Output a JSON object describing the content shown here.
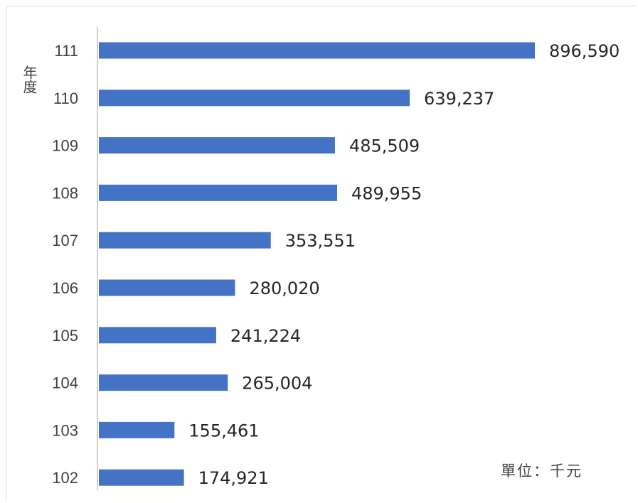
{
  "chart_data": {
    "type": "bar",
    "orientation": "horizontal",
    "categories": [
      "111",
      "110",
      "109",
      "108",
      "107",
      "106",
      "105",
      "104",
      "103",
      "102"
    ],
    "values": [
      896590,
      639237,
      485509,
      489955,
      353551,
      280020,
      241224,
      265004,
      155461,
      174921
    ],
    "value_labels": [
      "896,590",
      "639,237",
      "485,509",
      "489,955",
      "353,551",
      "280,020",
      "241,224",
      "265,004",
      "155,461",
      "174,921"
    ],
    "ylabel": "年度",
    "xlabel": "",
    "unit_note": "單位：千元",
    "bar_color": "#4472c4",
    "grid": false,
    "legend": "none"
  }
}
